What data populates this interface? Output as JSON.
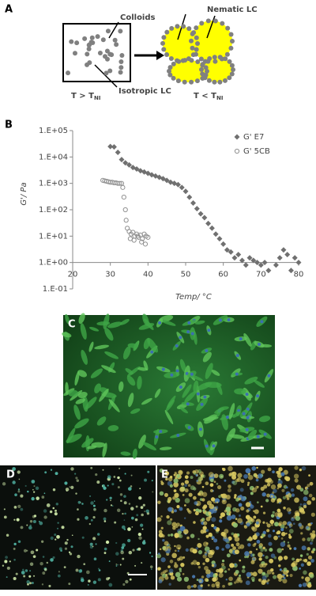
{
  "panels": {
    "a": "A",
    "b": "B",
    "c": "C",
    "d": "D",
    "e": "E"
  },
  "diagram": {
    "colloids": "Colloids",
    "nematic": "Nematic LC",
    "isotropic": "Isotropic LC",
    "left_temp": {
      "text": "T > T",
      "sub": "NI"
    },
    "right_temp": {
      "text": "T < T",
      "sub": "NI"
    }
  },
  "chart_data": {
    "type": "scatter",
    "xlabel": "Temp/ °C",
    "ylabel": "G'/ Pa",
    "xlim": [
      20,
      80
    ],
    "xticks": [
      20,
      30,
      40,
      50,
      60,
      70,
      80
    ],
    "ylim": [
      0.1,
      100000
    ],
    "log_y": true,
    "xaxis_crosses": 1,
    "yticks": [
      {
        "value": 0.1,
        "label": "1.E-01"
      },
      {
        "value": 1,
        "label": "1.E+00"
      },
      {
        "value": 10,
        "label": "1.E+01"
      },
      {
        "value": 100,
        "label": "1.E+02"
      },
      {
        "value": 1000,
        "label": "1.E+03"
      },
      {
        "value": 10000,
        "label": "1.E+04"
      },
      {
        "value": 100000,
        "label": "1.E+05"
      }
    ],
    "legend": "upper right",
    "series": [
      {
        "name": "G' E7",
        "color": "#707070",
        "marker": "diamond",
        "x": [
          30,
          31,
          32,
          33,
          34,
          35,
          36,
          37,
          38,
          39,
          40,
          41,
          42,
          43,
          44,
          45,
          46,
          47,
          48,
          49,
          50,
          51,
          52,
          53,
          54,
          55,
          56,
          57,
          58,
          59,
          60,
          61,
          62,
          63,
          64,
          65,
          66,
          67,
          68,
          69,
          70,
          71,
          72,
          74,
          75,
          76,
          77,
          78,
          79,
          80
        ],
        "values": [
          25000,
          24000,
          15000,
          8000,
          6000,
          5000,
          4000,
          3500,
          3000,
          2700,
          2400,
          2100,
          1900,
          1700,
          1500,
          1300,
          1100,
          1000,
          900,
          700,
          500,
          300,
          180,
          110,
          70,
          50,
          30,
          20,
          12,
          8,
          5,
          3,
          2.5,
          1.5,
          2,
          1.2,
          0.8,
          1.5,
          1.2,
          1,
          0.8,
          1,
          0.5,
          0.8,
          1.5,
          3,
          2,
          0.5,
          1.5,
          1
        ]
      },
      {
        "name": "G' 5CB",
        "color": "#909090",
        "marker": "circle",
        "x": [
          28,
          28.5,
          29,
          29.5,
          30,
          30.5,
          31,
          31.5,
          32,
          32.5,
          33,
          33.3,
          33.6,
          34,
          34.2,
          34.5,
          35,
          35.5,
          36,
          36.5,
          37,
          37.5,
          38,
          38.5,
          39,
          39.5,
          40,
          35.3,
          36.3,
          37.3,
          38.3,
          39.3
        ],
        "values": [
          1300,
          1250,
          1200,
          1150,
          1100,
          1100,
          1050,
          1050,
          1000,
          1000,
          1000,
          700,
          300,
          100,
          40,
          20,
          15,
          12,
          14,
          10,
          12,
          9,
          11,
          8,
          12,
          10,
          9,
          8,
          7,
          10,
          6,
          5
        ]
      }
    ]
  }
}
